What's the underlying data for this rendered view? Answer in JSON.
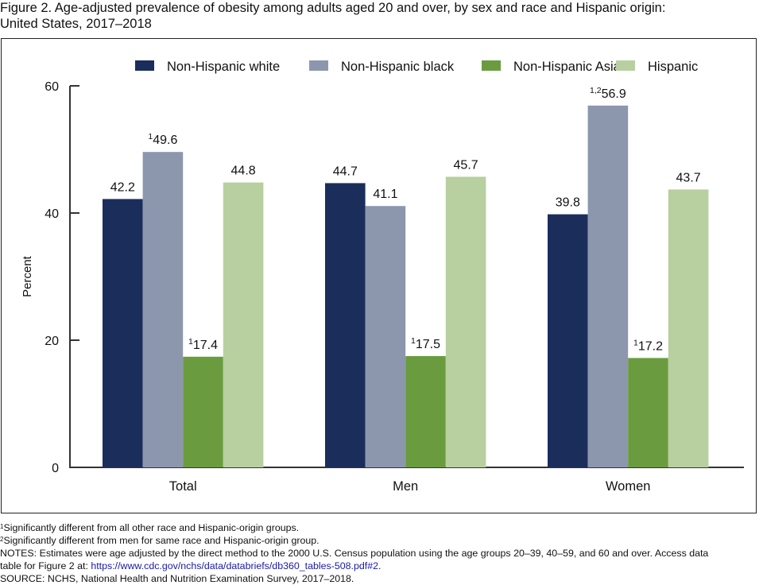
{
  "figure": {
    "title_line1": "Figure 2. Age-adjusted prevalence of obesity among adults aged 20 and over, by sex and race and Hispanic origin:",
    "title_line2": "United States, 2017–2018"
  },
  "chart_data": {
    "type": "bar",
    "title": "Age-adjusted prevalence of obesity among adults aged 20 and over, by sex and race and Hispanic origin: United States, 2017–2018",
    "xlabel": "",
    "ylabel": "Percent",
    "ylim": [
      0,
      60
    ],
    "yticks": [
      0,
      20,
      40,
      60
    ],
    "grid": false,
    "legend_position": "top",
    "categories": [
      "Total",
      "Men",
      "Women"
    ],
    "series": [
      {
        "name": "Non-Hispanic white",
        "color": "#1b2d5b",
        "values": [
          42.2,
          44.7,
          39.8
        ],
        "labels": [
          "42.2",
          "44.7",
          "39.8"
        ],
        "footnotes": [
          "",
          "",
          ""
        ]
      },
      {
        "name": "Non-Hispanic black",
        "color": "#8c97ae",
        "values": [
          49.6,
          41.1,
          56.9
        ],
        "labels": [
          "49.6",
          "41.1",
          "56.9"
        ],
        "footnotes": [
          "1",
          "",
          "1,2"
        ]
      },
      {
        "name": "Non-Hispanic Asian",
        "color": "#6a9c3f",
        "values": [
          17.4,
          17.5,
          17.2
        ],
        "labels": [
          "17.4",
          "17.5",
          "17.2"
        ],
        "footnotes": [
          "1",
          "1",
          "1"
        ]
      },
      {
        "name": "Hispanic",
        "color": "#b8cfa0",
        "values": [
          44.8,
          45.7,
          43.7
        ],
        "labels": [
          "44.8",
          "45.7",
          "43.7"
        ],
        "footnotes": [
          "",
          "",
          ""
        ]
      }
    ]
  },
  "footnotes": {
    "note1_mark": "1",
    "note1_text": "Significantly different from all other race and Hispanic-origin groups.",
    "note2_mark": "2",
    "note2_text": "Significantly different from men for same race and Hispanic-origin group.",
    "notes_line1": "NOTES: Estimates were age adjusted by the direct method to the 2000 U.S. Census population using the age groups 20–39, 40–59, and 60 and over. Access data",
    "notes_line2_prefix": "table for Figure 2 at: ",
    "notes_link": "https://www.cdc.gov/nchs/data/databriefs/db360_tables-508.pdf#2",
    "notes_line2_suffix": ".",
    "source": "SOURCE: NCHS, National Health and Nutrition Examination Survey, 2017–2018."
  }
}
